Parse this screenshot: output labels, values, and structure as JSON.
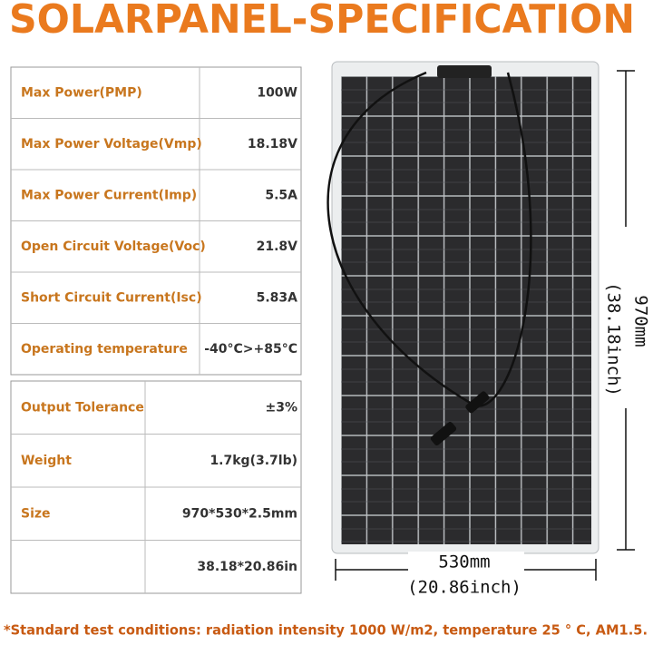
{
  "title": "SOLARPANEL-SPECIFICATION",
  "table1": {
    "rows": [
      {
        "label": "Max Power(PMP)",
        "value": "100W"
      },
      {
        "label": "Max Power Voltage(Vmp)",
        "value": "18.18V"
      },
      {
        "label": "Max Power Current(Imp)",
        "value": "5.5A"
      },
      {
        "label": "Open Circuit Voltage(Voc)",
        "value": "21.8V"
      },
      {
        "label": "Short Circuit Current(Isc)",
        "value": "5.83A"
      },
      {
        "label": "Operating temperature",
        "value": "-40°C>+85°C"
      }
    ]
  },
  "table2": {
    "rows": [
      {
        "label": "Output Tolerance",
        "value": "±3%"
      },
      {
        "label": "Weight",
        "value": "1.7kg(3.7lb)"
      },
      {
        "label": "Size",
        "value": "970*530*2.5mm"
      },
      {
        "value": "38.18*20.86in"
      }
    ]
  },
  "dimensions": {
    "width": "530mm",
    "width_inch": "(20.86inch)",
    "height": "970mm",
    "height_inch": "(38.18inch)"
  },
  "footnote": "*Standard test conditions: radiation intensity 1000 W/m2, temperature 25 ° C, AM1.5."
}
